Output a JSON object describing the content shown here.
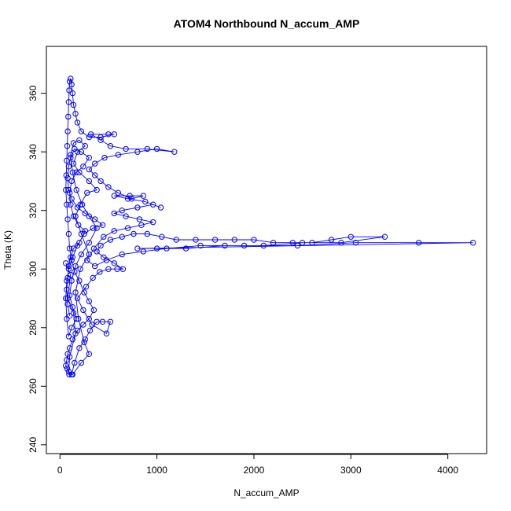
{
  "chart_data": {
    "type": "scatter",
    "title": "ATOM4 Northbound N_accum_AMP",
    "xlabel": "N_accum_AMP",
    "ylabel": "Theta (K)",
    "xlim": [
      -140,
      4400
    ],
    "ylim": [
      237,
      376
    ],
    "xticks": [
      0,
      1000,
      2000,
      3000,
      4000
    ],
    "yticks": [
      240,
      260,
      280,
      300,
      320,
      340,
      360
    ],
    "grid": false,
    "legend": "none",
    "marker": "open-circle",
    "connected": true,
    "color": "#0000ff",
    "series": [
      {
        "points": [
          [
            60,
            302
          ],
          [
            110,
            298
          ],
          [
            80,
            290
          ],
          [
            140,
            285
          ],
          [
            160,
            278
          ],
          [
            100,
            270
          ],
          [
            90,
            265
          ],
          [
            120,
            264
          ],
          [
            150,
            268
          ],
          [
            200,
            273
          ],
          [
            260,
            276
          ],
          [
            310,
            279
          ],
          [
            380,
            282
          ],
          [
            440,
            282
          ],
          [
            520,
            282
          ],
          [
            480,
            278
          ],
          [
            330,
            281
          ],
          [
            240,
            286
          ],
          [
            180,
            290
          ],
          [
            270,
            294
          ],
          [
            340,
            297
          ],
          [
            410,
            299
          ],
          [
            500,
            300
          ],
          [
            590,
            300
          ],
          [
            650,
            300
          ],
          [
            560,
            302
          ],
          [
            450,
            304
          ],
          [
            380,
            306
          ],
          [
            420,
            308
          ],
          [
            520,
            310
          ],
          [
            640,
            311
          ],
          [
            760,
            312
          ],
          [
            900,
            312
          ],
          [
            1050,
            311
          ],
          [
            1200,
            310
          ],
          [
            1400,
            310
          ],
          [
            1600,
            310
          ],
          [
            1800,
            310
          ],
          [
            2000,
            310
          ],
          [
            2200,
            309
          ],
          [
            2400,
            309
          ],
          [
            2600,
            309
          ],
          [
            2800,
            310
          ],
          [
            3000,
            311
          ],
          [
            3350,
            311
          ],
          [
            2900,
            309
          ],
          [
            2500,
            309
          ],
          [
            2100,
            308
          ],
          [
            1700,
            308
          ],
          [
            1300,
            307
          ],
          [
            1000,
            307
          ],
          [
            800,
            307
          ],
          [
            4260,
            309
          ],
          [
            3700,
            309
          ],
          [
            3050,
            309
          ],
          [
            2450,
            308
          ],
          [
            1900,
            308
          ],
          [
            1450,
            308
          ],
          [
            1100,
            307
          ],
          [
            860,
            306
          ],
          [
            640,
            305
          ],
          [
            480,
            303
          ],
          [
            360,
            301
          ],
          [
            280,
            303
          ],
          [
            350,
            307
          ],
          [
            450,
            311
          ],
          [
            560,
            313
          ],
          [
            700,
            314
          ],
          [
            840,
            315
          ],
          [
            960,
            316
          ],
          [
            820,
            317
          ],
          [
            680,
            318
          ],
          [
            560,
            319
          ],
          [
            640,
            320
          ],
          [
            800,
            321
          ],
          [
            960,
            322
          ],
          [
            1040,
            321
          ],
          [
            880,
            323
          ],
          [
            700,
            324
          ],
          [
            560,
            325
          ],
          [
            720,
            325
          ],
          [
            860,
            325
          ],
          [
            740,
            324
          ],
          [
            600,
            326
          ],
          [
            500,
            328
          ],
          [
            420,
            330
          ],
          [
            360,
            332
          ],
          [
            300,
            334
          ],
          [
            360,
            336
          ],
          [
            460,
            338
          ],
          [
            600,
            339
          ],
          [
            800,
            340
          ],
          [
            1000,
            341
          ],
          [
            1180,
            340
          ],
          [
            900,
            341
          ],
          [
            680,
            341
          ],
          [
            520,
            342
          ],
          [
            420,
            344
          ],
          [
            320,
            346
          ],
          [
            500,
            346
          ],
          [
            560,
            346
          ],
          [
            420,
            345
          ],
          [
            300,
            345
          ],
          [
            220,
            347
          ],
          [
            180,
            350
          ],
          [
            160,
            353
          ],
          [
            140,
            356
          ],
          [
            130,
            360
          ],
          [
            120,
            363
          ],
          [
            110,
            365
          ],
          [
            100,
            364
          ],
          [
            95,
            361
          ],
          [
            90,
            357
          ],
          [
            85,
            352
          ],
          [
            80,
            347
          ],
          [
            75,
            342
          ],
          [
            70,
            337
          ],
          [
            65,
            332
          ],
          [
            60,
            327
          ],
          [
            70,
            322
          ],
          [
            80,
            317
          ],
          [
            90,
            312
          ],
          [
            100,
            307
          ],
          [
            120,
            303
          ],
          [
            150,
            299
          ],
          [
            200,
            296
          ],
          [
            250,
            292
          ],
          [
            300,
            289
          ],
          [
            350,
            286
          ],
          [
            300,
            283
          ],
          [
            240,
            281
          ],
          [
            180,
            279
          ],
          [
            130,
            276
          ],
          [
            100,
            273
          ],
          [
            80,
            271
          ],
          [
            70,
            269
          ],
          [
            60,
            267
          ],
          [
            75,
            266
          ],
          [
            95,
            264
          ],
          [
            130,
            264
          ],
          [
            220,
            268
          ],
          [
            300,
            271
          ],
          [
            250,
            275
          ],
          [
            190,
            283
          ],
          [
            160,
            292
          ],
          [
            210,
            300
          ],
          [
            300,
            305
          ],
          [
            220,
            312
          ],
          [
            160,
            318
          ],
          [
            210,
            322
          ],
          [
            280,
            326
          ],
          [
            380,
            327
          ],
          [
            300,
            330
          ],
          [
            200,
            333
          ],
          [
            140,
            336
          ],
          [
            180,
            340
          ],
          [
            260,
            342
          ],
          [
            200,
            344
          ],
          [
            140,
            343
          ],
          [
            110,
            339
          ],
          [
            130,
            333
          ],
          [
            170,
            327
          ],
          [
            230,
            322
          ],
          [
            300,
            318
          ],
          [
            380,
            314
          ],
          [
            300,
            309
          ],
          [
            220,
            305
          ],
          [
            160,
            301
          ],
          [
            120,
            296
          ],
          [
            100,
            291
          ],
          [
            130,
            287
          ],
          [
            170,
            283
          ],
          [
            120,
            280
          ],
          [
            90,
            277
          ],
          [
            70,
            283
          ],
          [
            60,
            290
          ],
          [
            70,
            296
          ],
          [
            90,
            300
          ],
          [
            130,
            304
          ],
          [
            180,
            308
          ],
          [
            250,
            312
          ],
          [
            340,
            314
          ],
          [
            440,
            315
          ],
          [
            360,
            317
          ],
          [
            260,
            319
          ],
          [
            180,
            321
          ],
          [
            120,
            324
          ],
          [
            90,
            327
          ],
          [
            80,
            331
          ],
          [
            90,
            335
          ],
          [
            110,
            338
          ],
          [
            150,
            341
          ],
          [
            220,
            340
          ],
          [
            300,
            338
          ],
          [
            240,
            335
          ],
          [
            170,
            333
          ],
          [
            120,
            330
          ],
          [
            100,
            326
          ],
          [
            110,
            322
          ],
          [
            140,
            318
          ],
          [
            190,
            315
          ],
          [
            260,
            313
          ],
          [
            200,
            309
          ],
          [
            140,
            307
          ],
          [
            110,
            304
          ],
          [
            90,
            301
          ],
          [
            80,
            297
          ],
          [
            70,
            293
          ],
          [
            80,
            288
          ],
          [
            100,
            284
          ]
        ]
      }
    ]
  }
}
